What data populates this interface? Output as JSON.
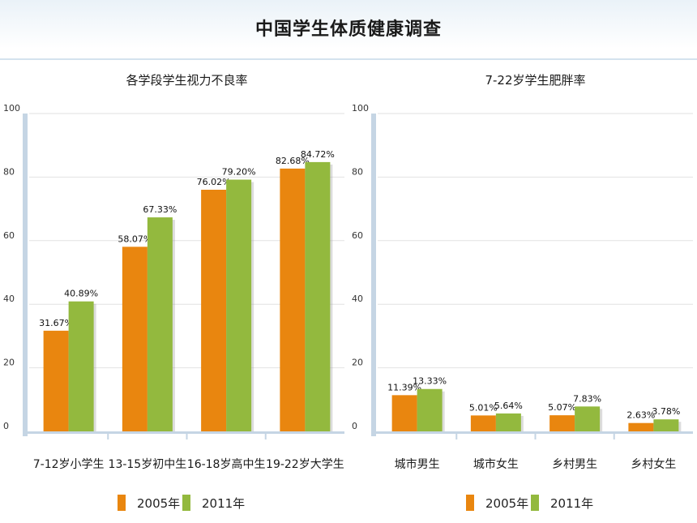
{
  "page": {
    "title": "中国学生体质健康调查"
  },
  "legend": [
    {
      "label": "2005年",
      "color": "#e9860f"
    },
    {
      "label": "2011年",
      "color": "#93b93e"
    }
  ],
  "chart_data": [
    {
      "type": "bar",
      "title": "各学段学生视力不良率",
      "categories": [
        "7-12岁小学生",
        "13-15岁初中生",
        "16-18岁高中生",
        "19-22岁大学生"
      ],
      "series": [
        {
          "name": "2005年",
          "values": [
            31.67,
            58.07,
            76.02,
            82.68
          ],
          "labels": [
            "31.67%",
            "58.07%",
            "76.02%",
            "82.68%"
          ]
        },
        {
          "name": "2011年",
          "values": [
            40.89,
            67.33,
            79.2,
            84.72
          ],
          "labels": [
            "40.89%",
            "67.33%",
            "79.20%",
            "84.72%"
          ]
        }
      ],
      "ylim": [
        0,
        100
      ],
      "yticks": [
        0,
        20,
        40,
        60,
        80,
        100
      ],
      "grid": true,
      "legend_position": "bottom"
    },
    {
      "type": "bar",
      "title": "7-22岁学生肥胖率",
      "categories": [
        "城市男生",
        "城市女生",
        "乡村男生",
        "乡村女生"
      ],
      "series": [
        {
          "name": "2005年",
          "values": [
            11.39,
            5.01,
            5.07,
            2.63
          ],
          "labels": [
            "11.39%",
            "5.01%",
            "5.07%",
            "2.63%"
          ]
        },
        {
          "name": "2011年",
          "values": [
            13.33,
            5.64,
            7.83,
            3.78
          ],
          "labels": [
            "13.33%",
            "5.64%",
            "7.83%",
            "3.78%"
          ]
        }
      ],
      "ylim": [
        0,
        100
      ],
      "yticks": [
        0,
        20,
        40,
        60,
        80,
        100
      ],
      "grid": true,
      "legend_position": "bottom"
    }
  ]
}
